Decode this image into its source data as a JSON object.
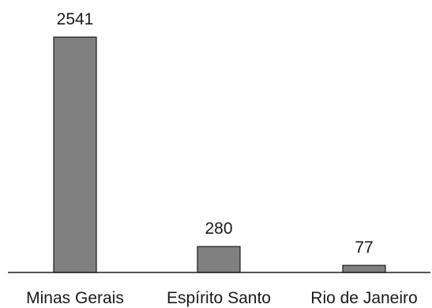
{
  "chart_data": {
    "type": "bar",
    "title": "",
    "xlabel": "",
    "ylabel": "",
    "categories": [
      "Minas Gerais",
      "Espírito Santo",
      "Rio de Janeiro"
    ],
    "values": [
      2541,
      280,
      77
    ],
    "data_labels": [
      "2541",
      "280",
      "77"
    ],
    "ylim": [
      0,
      2541
    ],
    "grid": false,
    "legend": "none",
    "colors": {
      "bar_fill": "#808080",
      "bar_stroke": "#1a1a1a",
      "text": "#1a1a1a"
    }
  }
}
